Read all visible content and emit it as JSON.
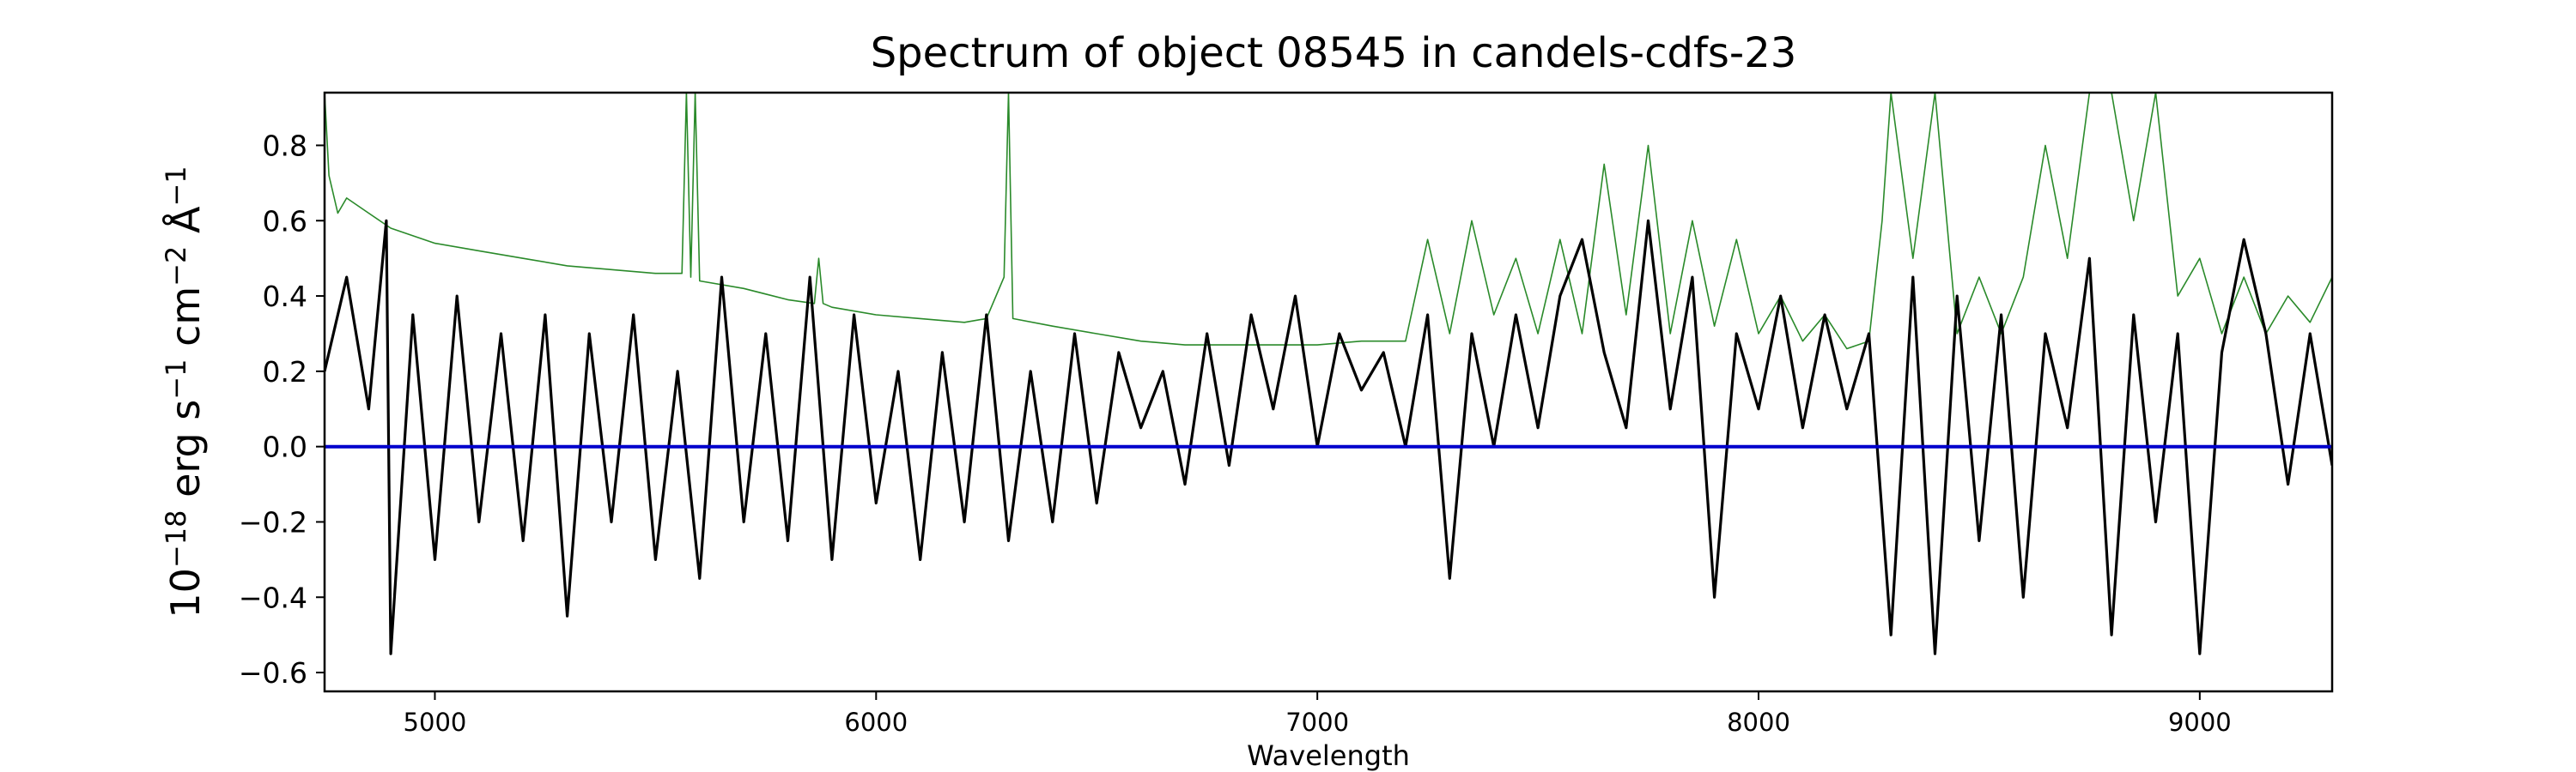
{
  "chart_data": {
    "type": "line",
    "title": "Spectrum of object 08545 in candels-cdfs-23",
    "xlabel": "Wavelength",
    "ylabel_parts": {
      "base": "10",
      "exp_1": "−18",
      "erg": " erg s",
      "exp_2": "−1",
      "cm": " cm",
      "exp_3": "−2",
      "ang": " Å",
      "exp_4": "−1"
    },
    "xlim": [
      4750,
      9300
    ],
    "ylim": [
      -0.65,
      0.94
    ],
    "xticks": [
      5000,
      6000,
      7000,
      8000,
      9000
    ],
    "xtick_labels": [
      "5000",
      "6000",
      "7000",
      "8000",
      "9000"
    ],
    "yticks": [
      -0.6,
      -0.4,
      -0.2,
      0.0,
      0.2,
      0.4,
      0.6,
      0.8
    ],
    "ytick_labels": [
      "−0.6",
      "−0.4",
      "−0.2",
      "0.0",
      "0.2",
      "0.4",
      "0.6",
      "0.8"
    ],
    "grid": false,
    "colors": {
      "flux": "#000000",
      "error": "#2a8a2a",
      "zero": "#0000cc"
    },
    "series": [
      {
        "role": "flux",
        "x": [
          4750,
          4800,
          4850,
          4890,
          4900,
          4950,
          5000,
          5050,
          5100,
          5150,
          5200,
          5250,
          5300,
          5350,
          5400,
          5450,
          5500,
          5550,
          5600,
          5650,
          5700,
          5750,
          5800,
          5850,
          5900,
          5950,
          6000,
          6050,
          6100,
          6150,
          6200,
          6250,
          6300,
          6350,
          6400,
          6450,
          6500,
          6550,
          6600,
          6650,
          6700,
          6750,
          6800,
          6850,
          6900,
          6950,
          7000,
          7050,
          7100,
          7150,
          7200,
          7250,
          7300,
          7350,
          7400,
          7450,
          7500,
          7550,
          7600,
          7650,
          7700,
          7750,
          7800,
          7850,
          7900,
          7950,
          8000,
          8050,
          8100,
          8150,
          8200,
          8250,
          8300,
          8350,
          8400,
          8450,
          8500,
          8550,
          8600,
          8650,
          8700,
          8750,
          8800,
          8850,
          8900,
          8950,
          9000,
          9050,
          9100,
          9150,
          9200,
          9250,
          9300
        ],
        "y": [
          0.2,
          0.45,
          0.1,
          0.6,
          -0.55,
          0.35,
          -0.3,
          0.4,
          -0.2,
          0.3,
          -0.25,
          0.35,
          -0.45,
          0.3,
          -0.2,
          0.35,
          -0.3,
          0.2,
          -0.35,
          0.45,
          -0.2,
          0.3,
          -0.25,
          0.45,
          -0.3,
          0.35,
          -0.15,
          0.2,
          -0.3,
          0.25,
          -0.2,
          0.35,
          -0.25,
          0.2,
          -0.2,
          0.3,
          -0.15,
          0.25,
          0.05,
          0.2,
          -0.1,
          0.3,
          -0.05,
          0.35,
          0.1,
          0.4,
          0.0,
          0.3,
          0.15,
          0.25,
          0.0,
          0.35,
          -0.35,
          0.3,
          0.0,
          0.35,
          0.05,
          0.4,
          0.55,
          0.25,
          0.05,
          0.6,
          0.1,
          0.45,
          -0.4,
          0.3,
          0.1,
          0.4,
          0.05,
          0.35,
          0.1,
          0.3,
          -0.5,
          0.45,
          -0.55,
          0.4,
          -0.25,
          0.35,
          -0.4,
          0.3,
          0.05,
          0.5,
          -0.5,
          0.35,
          -0.2,
          0.3,
          -0.55,
          0.25,
          0.55,
          0.3,
          -0.1,
          0.3,
          -0.05
        ]
      },
      {
        "role": "error",
        "x": [
          4750,
          4760,
          4780,
          4800,
          4850,
          4900,
          5000,
          5100,
          5200,
          5300,
          5400,
          5500,
          5560,
          5570,
          5580,
          5590,
          5600,
          5700,
          5800,
          5860,
          5870,
          5880,
          5900,
          6000,
          6100,
          6200,
          6250,
          6290,
          6300,
          6310,
          6400,
          6500,
          6600,
          6700,
          6800,
          6900,
          7000,
          7100,
          7200,
          7250,
          7300,
          7350,
          7400,
          7450,
          7500,
          7550,
          7600,
          7650,
          7700,
          7750,
          7800,
          7850,
          7900,
          7950,
          8000,
          8050,
          8100,
          8150,
          8200,
          8250,
          8280,
          8300,
          8350,
          8400,
          8450,
          8500,
          8550,
          8600,
          8650,
          8700,
          8750,
          8800,
          8850,
          8900,
          8950,
          9000,
          9050,
          9100,
          9150,
          9200,
          9250,
          9300
        ],
        "y": [
          0.94,
          0.72,
          0.62,
          0.66,
          0.62,
          0.58,
          0.54,
          0.52,
          0.5,
          0.48,
          0.47,
          0.46,
          0.46,
          0.94,
          0.45,
          0.94,
          0.44,
          0.42,
          0.39,
          0.38,
          0.5,
          0.38,
          0.37,
          0.35,
          0.34,
          0.33,
          0.34,
          0.45,
          0.94,
          0.34,
          0.32,
          0.3,
          0.28,
          0.27,
          0.27,
          0.27,
          0.27,
          0.28,
          0.28,
          0.55,
          0.3,
          0.6,
          0.35,
          0.5,
          0.3,
          0.55,
          0.3,
          0.75,
          0.35,
          0.8,
          0.3,
          0.6,
          0.32,
          0.55,
          0.3,
          0.4,
          0.28,
          0.35,
          0.26,
          0.28,
          0.6,
          0.94,
          0.5,
          0.94,
          0.3,
          0.45,
          0.3,
          0.45,
          0.8,
          0.5,
          0.94,
          0.94,
          0.6,
          0.94,
          0.4,
          0.5,
          0.3,
          0.45,
          0.3,
          0.4,
          0.33,
          0.45
        ]
      },
      {
        "role": "zero",
        "x": [
          4750,
          9300
        ],
        "y": [
          0.0,
          0.0
        ]
      }
    ]
  }
}
